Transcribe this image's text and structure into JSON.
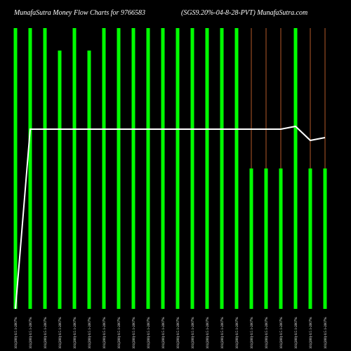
{
  "header": {
    "title_left": "MunafaSutra  Money Flow  Charts for 9766583",
    "title_right": "(SGS9.20%-04-8-28-PVT) MunafaSutra.com"
  },
  "colors": {
    "background": "#000000",
    "bar": "#00ff00",
    "thin_line": "#b35a2a",
    "line": "#ffffff",
    "text": "#ffffff"
  },
  "chart_data": {
    "type": "bar",
    "title": "MunafaSutra  Money Flow  Charts for 9766583",
    "subtitle": "(SGS9.20%-04-8-28-PVT) MunafaSutra.com",
    "categories": [
      "101(200) 0.5 1-2007%",
      "101(200) 0.5 1-2007%",
      "101(200) 0.5 1-2007%",
      "101(200) 0.5 1-2007%",
      "101(200) 0.5 1-2007%",
      "101(200) 0.5 1-2007%",
      "101(200) 0.5 1-2007%",
      "101(200) 0.5 1-2007%",
      "101(200) 0.5 1-2007%",
      "101(200) 0.5 1-2007%",
      "101(200) 0.5 1-2007%",
      "101(200) 0.5 1-2007%",
      "101(200) 0.5 1-2007%",
      "101(200) 0.5 1-2007%",
      "101(200) 0.5 1-2007%",
      "101(200) 0.5 1-2007%",
      "101(200) 0.5 1-2007%",
      "101(200) 0.5 1-2007%",
      "101(200) 0.5 1-2007%",
      "101(200) 0.5 1-2007%",
      "101(200) 0.5 1-2007%",
      "101(200) 0.5 1-2007%"
    ],
    "series": [
      {
        "values": [
          100,
          100,
          100,
          92,
          100,
          92,
          100,
          100,
          100,
          100,
          100,
          100,
          100,
          100,
          100,
          100,
          50,
          50,
          50,
          100,
          50,
          50
        ]
      },
      {
        "values": [
          0,
          64,
          64,
          64,
          64,
          64,
          64,
          64,
          64,
          64,
          64,
          64,
          64,
          64,
          64,
          64,
          64,
          64,
          64,
          65,
          60,
          61
        ]
      }
    ],
    "thin_bars": [
      0,
      0,
      0,
      0,
      0,
      0,
      0,
      0,
      0,
      0,
      0,
      0,
      0,
      0,
      0,
      0,
      100,
      100,
      100,
      0,
      100,
      100
    ],
    "ylim": [
      0,
      100
    ],
    "grid": false
  }
}
